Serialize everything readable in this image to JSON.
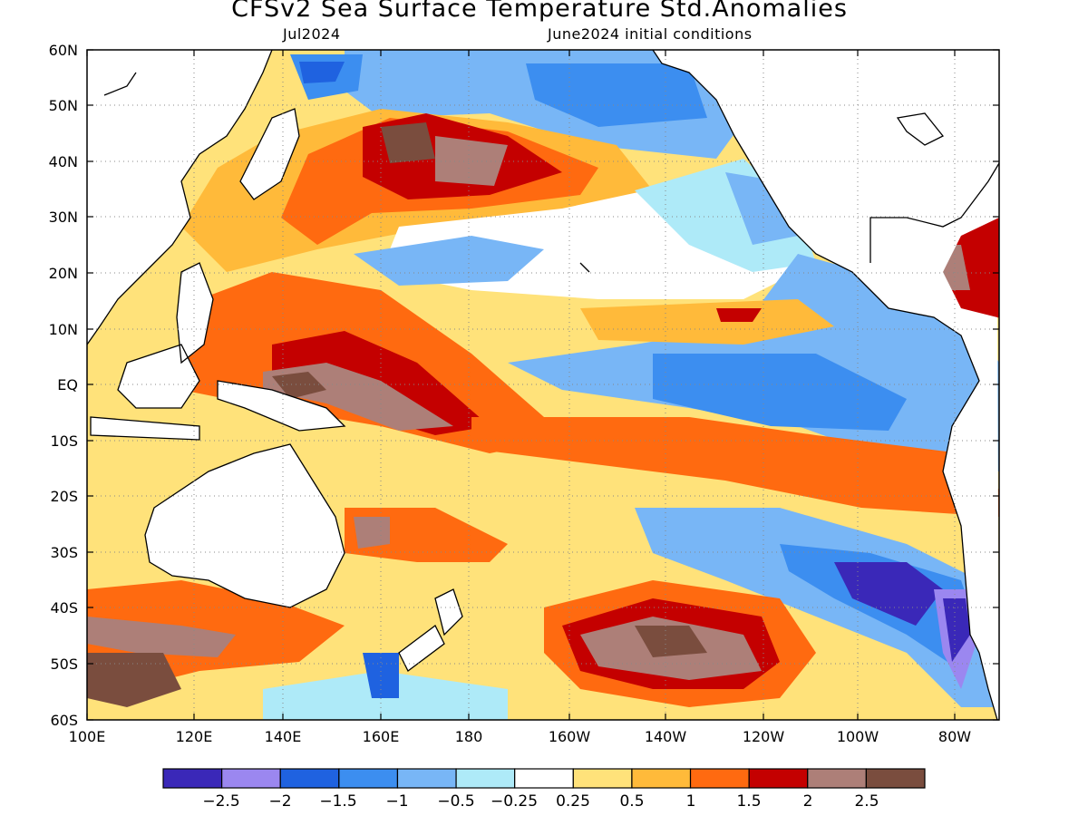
{
  "title": "CFSv2 Sea Surface Temperature Std.Anomalies",
  "valid_month": "Jul2024",
  "initial_conditions": "June2024 initial conditions",
  "map": {
    "lon_range": [
      "100E",
      "70W"
    ],
    "lat_range": [
      "60S",
      "60N"
    ],
    "grid_lines": "dotted",
    "lat_ticks": [
      "60N",
      "50N",
      "40N",
      "30N",
      "20N",
      "10N",
      "EQ",
      "10S",
      "20S",
      "30S",
      "40S",
      "50S",
      "60S"
    ],
    "lon_ticks": [
      "100E",
      "120E",
      "140E",
      "160E",
      "180",
      "160W",
      "140W",
      "120W",
      "100W",
      "80W"
    ]
  },
  "legend": {
    "colors": [
      "#3a28b8",
      "#9b87f0",
      "#1f62e0",
      "#3c8ef0",
      "#78b6f6",
      "#aeeaf8",
      "#ffffff",
      "#ffe27a",
      "#ffba3a",
      "#ff6a10",
      "#c40000",
      "#ad7f78",
      "#7a4d3e"
    ],
    "labels": [
      "−2.5",
      "−2",
      "−1.5",
      "−1",
      "−0.5",
      "−0.25",
      "0.25",
      "0.5",
      "1",
      "1.5",
      "2",
      "2.5"
    ]
  },
  "colors": {
    "land": "#ffffff",
    "coast": "#000000"
  }
}
